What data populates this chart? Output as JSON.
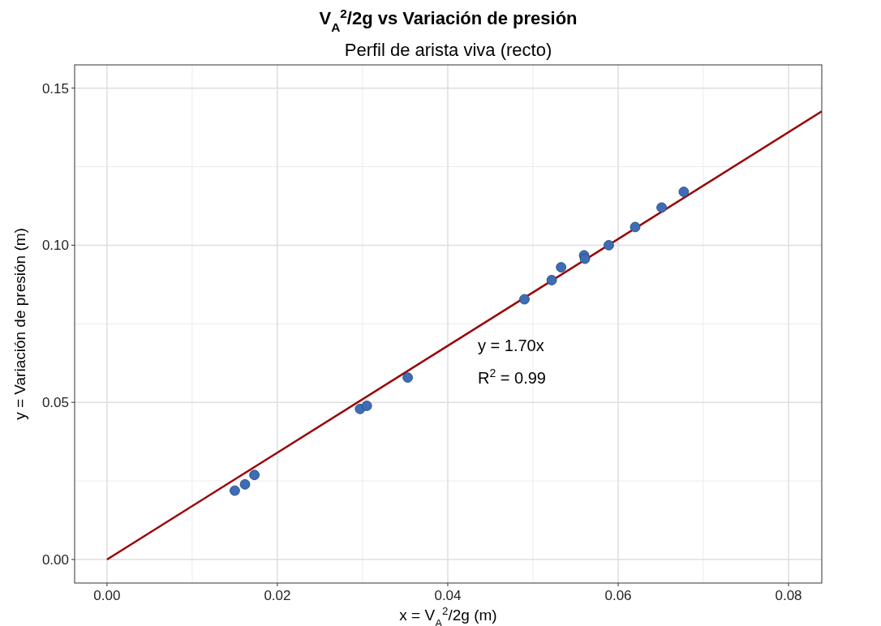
{
  "chart_data": {
    "type": "scatter",
    "title": "V$_{A}$$^{2}$/2g vs Variación de presión",
    "subtitle": "Perfil de arista viva (recto)",
    "xlabel": "x = V$_{A}$$^{2}$/2g (m)",
    "ylabel": "y = Variación de presión (m)",
    "xlim": [
      -0.0038,
      0.0839
    ],
    "ylim": [
      -0.0075,
      0.1574
    ],
    "xticks": [
      {
        "value": 0,
        "label": "0.00"
      },
      {
        "value": 0.02,
        "label": "0.02"
      },
      {
        "value": 0.04,
        "label": "0.04"
      },
      {
        "value": 0.06,
        "label": "0.06"
      },
      {
        "value": 0.08,
        "label": "0.08"
      }
    ],
    "yticks": [
      {
        "value": 0,
        "label": "0.00"
      },
      {
        "value": 0.05,
        "label": "0.05"
      },
      {
        "value": 0.1,
        "label": "0.10"
      },
      {
        "value": 0.15,
        "label": "0.15"
      }
    ],
    "grid": true,
    "series": [
      {
        "marker": "circle",
        "color": "#3e6db5",
        "x": [
          0.015,
          0.0162,
          0.0173,
          0.0297,
          0.0305,
          0.0353,
          0.049,
          0.0522,
          0.0533,
          0.056,
          0.0561,
          0.0589,
          0.062,
          0.0651,
          0.0677
        ],
        "values": [
          0.0219,
          0.0239,
          0.0269,
          0.0479,
          0.0489,
          0.0579,
          0.0828,
          0.0889,
          0.093,
          0.0968,
          0.0957,
          0.1,
          0.1058,
          0.112,
          0.117
        ]
      },
      {
        "type": "line",
        "color": "#990000",
        "line_style": "solid",
        "x": [
          0,
          0.0839
        ],
        "values": [
          0,
          0.1426
        ]
      }
    ],
    "annotations": [
      "y = 1.70x",
      "R$^{2}$ = 0.99"
    ]
  }
}
